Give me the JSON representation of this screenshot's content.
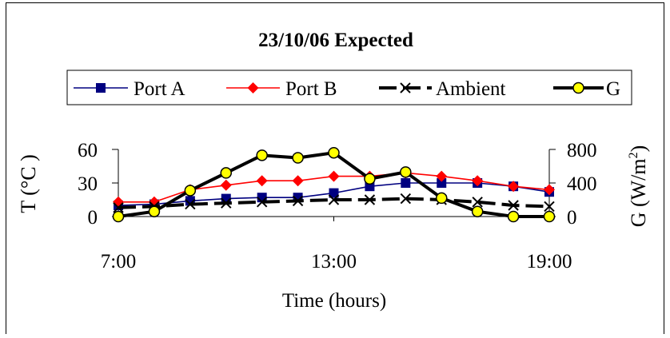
{
  "chart_data": {
    "type": "line",
    "title": "23/10/06 Expected",
    "xlabel": "Time (hours)",
    "ylabel": "T (°C )",
    "y2label": {
      "main": "G (W/m",
      "sup": "2",
      "close": ")"
    },
    "x_ticks": [
      "7:00",
      "13:00",
      "19:00"
    ],
    "x_range": [
      7,
      19
    ],
    "y_range": [
      0,
      60
    ],
    "y_ticks": [
      "0",
      "30",
      "60"
    ],
    "y2_range": [
      0,
      800
    ],
    "y2_ticks": [
      "0",
      "400",
      "800"
    ],
    "legend_position": "top",
    "series": [
      {
        "name": "Port A",
        "axis": "left",
        "color": "#000080",
        "marker": "square",
        "x": [
          7,
          8,
          9,
          10,
          11,
          12,
          13,
          14,
          15,
          16,
          17,
          18,
          19
        ],
        "values": [
          10,
          11,
          14,
          16,
          17,
          17,
          21,
          27,
          30,
          30,
          30,
          27,
          22
        ]
      },
      {
        "name": "Port B",
        "axis": "left",
        "color": "#ff0000",
        "marker": "diamond",
        "x": [
          7,
          8,
          9,
          10,
          11,
          12,
          13,
          14,
          15,
          16,
          17,
          18,
          19
        ],
        "values": [
          13,
          13,
          24,
          28,
          32,
          32,
          36,
          36,
          39,
          36,
          32,
          27,
          24
        ]
      },
      {
        "name": "Ambient",
        "axis": "left",
        "color": "#000000",
        "marker": "x",
        "x": [
          7,
          8,
          9,
          10,
          11,
          12,
          13,
          14,
          15,
          16,
          17,
          18,
          19
        ],
        "values": [
          8,
          9,
          11,
          12,
          13,
          14,
          15,
          15,
          16,
          15,
          13,
          10,
          9
        ]
      },
      {
        "name": "G",
        "axis": "right",
        "color": "#000000",
        "marker": "circle",
        "marker_fill": "#ffff00",
        "x": [
          7,
          8,
          9,
          10,
          11,
          12,
          13,
          14,
          15,
          16,
          17,
          18,
          19
        ],
        "values": [
          0,
          60,
          310,
          520,
          730,
          700,
          760,
          450,
          530,
          220,
          60,
          0,
          0
        ]
      }
    ]
  }
}
